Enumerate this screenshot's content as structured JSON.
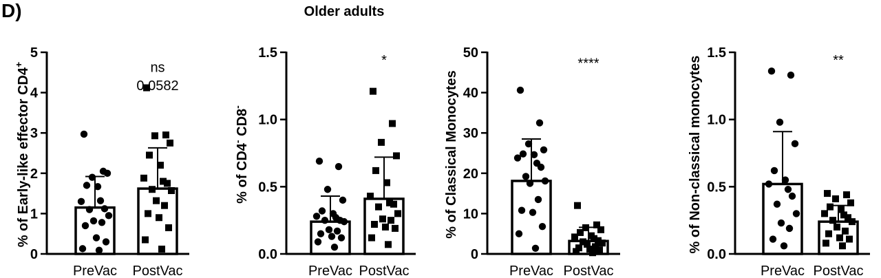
{
  "panel_label": "D)",
  "figure_title": "Older adults",
  "chart_data": [
    {
      "type": "bar",
      "ylabel_parts": [
        {
          "t": "% of Early-like effector CD4",
          "s": ""
        },
        {
          "t": "+",
          "s": "sup"
        }
      ],
      "ylim": [
        0,
        5
      ],
      "yticks": [
        0,
        1,
        2,
        3,
        4,
        5
      ],
      "ytick_labels": [
        "0",
        "1",
        "2",
        "3",
        "4",
        "5"
      ],
      "categories": [
        "PreVac",
        "PostVac"
      ],
      "means": [
        1.15,
        1.62
      ],
      "sd_upper": [
        1.92,
        2.63
      ],
      "points": [
        [
          2.97,
          2.05,
          1.9,
          2.0,
          1.7,
          1.67,
          1.3,
          1.32,
          1.12,
          1.1,
          0.95,
          0.82,
          0.78,
          0.7,
          0.4,
          0.3,
          0.13,
          0.09
        ],
        [
          4.12,
          2.95,
          2.93,
          2.75,
          2.45,
          2.2,
          1.88,
          1.8,
          1.75,
          1.6,
          1.57,
          1.32,
          1.2,
          1.0,
          0.9,
          0.65,
          0.35,
          0.12
        ]
      ],
      "markers": [
        "circle",
        "square"
      ],
      "annotation": [
        "ns",
        "0.0582"
      ],
      "annotation_y": [
        4.65,
        4.2
      ]
    },
    {
      "type": "bar",
      "ylabel_parts": [
        {
          "t": "% of CD4",
          "s": ""
        },
        {
          "t": "-",
          "s": "sup"
        },
        {
          "t": " CD8",
          "s": ""
        },
        {
          "t": "-",
          "s": "sup"
        }
      ],
      "ylim": [
        0,
        1.5
      ],
      "yticks": [
        0,
        0.5,
        1.0,
        1.5
      ],
      "ytick_labels": [
        "0.0",
        "0.5",
        "1.0",
        "1.5"
      ],
      "categories": [
        "PreVac",
        "PostVac"
      ],
      "means": [
        0.24,
        0.41
      ],
      "sd_upper": [
        0.43,
        0.72
      ],
      "points": [
        [
          0.69,
          0.65,
          0.48,
          0.4,
          0.32,
          0.3,
          0.28,
          0.27,
          0.25,
          0.25,
          0.24,
          0.18,
          0.17,
          0.15,
          0.13,
          0.12,
          0.09,
          0.05
        ],
        [
          1.21,
          0.97,
          0.83,
          0.73,
          0.62,
          0.53,
          0.43,
          0.38,
          0.37,
          0.35,
          0.3,
          0.26,
          0.25,
          0.22,
          0.2,
          0.19,
          0.12,
          0.07
        ]
      ],
      "markers": [
        "circle",
        "square"
      ],
      "annotation": [
        "*"
      ],
      "annotation_y": [
        1.45
      ]
    },
    {
      "type": "bar",
      "ylabel_parts": [
        {
          "t": "% of Classical Monocytes",
          "s": ""
        }
      ],
      "ylim": [
        0,
        50
      ],
      "yticks": [
        0,
        10,
        20,
        30,
        40,
        50
      ],
      "ytick_labels": [
        "0",
        "10",
        "20",
        "30",
        "40",
        "50"
      ],
      "categories": [
        "PreVac",
        "PostVac"
      ],
      "means": [
        18.1,
        3.2
      ],
      "sd_upper": [
        28.5,
        6.6
      ],
      "points": [
        [
          40.6,
          32.5,
          27.3,
          25.8,
          24.8,
          24.6,
          23.8,
          22.5,
          21.5,
          19.2,
          18.1,
          17.5,
          13.5,
          10.8,
          10.3,
          6.8,
          5.0,
          1.4
        ],
        [
          12.0,
          7.2,
          6.5,
          6.0,
          5.3,
          4.5,
          4.2,
          3.8,
          3.3,
          3.0,
          2.7,
          2.4,
          1.8,
          1.5,
          1.2,
          1.0,
          0.6,
          0.3
        ]
      ],
      "markers": [
        "circle",
        "square"
      ],
      "annotation": [
        "****"
      ],
      "annotation_y": [
        47.5
      ]
    },
    {
      "type": "bar",
      "ylabel_parts": [
        {
          "t": "% of Non-classical monocytes",
          "s": ""
        }
      ],
      "ylim": [
        0,
        1.5
      ],
      "yticks": [
        0,
        0.5,
        1.0,
        1.5
      ],
      "ytick_labels": [
        "0.0",
        "0.5",
        "1.0",
        "1.5"
      ],
      "categories": [
        "PreVac",
        "PostVac"
      ],
      "means": [
        0.52,
        0.24
      ],
      "sd_upper": [
        0.91,
        0.36
      ],
      "points": [
        [
          1.36,
          1.33,
          0.98,
          0.82,
          0.62,
          0.55,
          0.52,
          0.48,
          0.43,
          0.37,
          0.3,
          0.23,
          0.19,
          0.11,
          0.06
        ],
        [
          0.45,
          0.44,
          0.41,
          0.38,
          0.35,
          0.33,
          0.3,
          0.29,
          0.27,
          0.25,
          0.24,
          0.2,
          0.17,
          0.15,
          0.12,
          0.11,
          0.08,
          0.06
        ]
      ],
      "markers": [
        "circle",
        "square"
      ],
      "annotation": [
        "**"
      ],
      "annotation_y": [
        1.45
      ]
    }
  ]
}
